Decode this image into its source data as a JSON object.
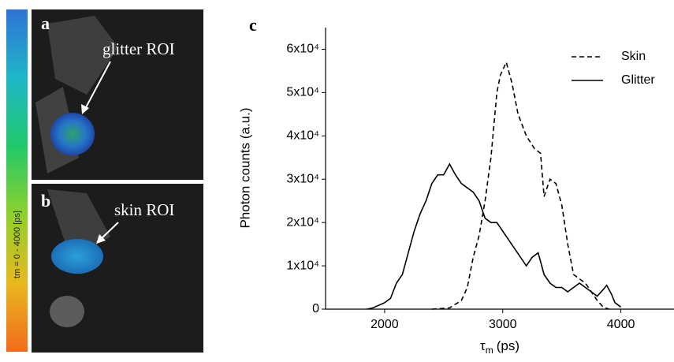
{
  "panels": {
    "a": {
      "label": "a",
      "annotation": "glitter ROI"
    },
    "b": {
      "label": "b",
      "annotation": "skin ROI"
    },
    "colorbar_label": "tm = 0 - 4000 [ps]"
  },
  "chart_data": {
    "type": "line",
    "panel_label": "c",
    "x_label": {
      "symbol": "τ",
      "subscript": "m",
      "unit": "(ps)"
    },
    "y_label": "Photon counts (a.u.)",
    "xlim": [
      1500,
      4450
    ],
    "ylim": [
      0,
      65000
    ],
    "xticks": [
      2000,
      3000,
      4000
    ],
    "yticks": [
      0,
      {
        "value": 10000,
        "label": "1x10⁴"
      },
      {
        "value": 20000,
        "label": "2x10⁴"
      },
      {
        "value": 30000,
        "label": "3x10⁴"
      },
      {
        "value": 40000,
        "label": "4x10⁴"
      },
      {
        "value": 50000,
        "label": "5x10⁴"
      },
      {
        "value": 60000,
        "label": "6x10⁴"
      }
    ],
    "legend": "top-right",
    "series": [
      {
        "name": "Skin",
        "color": "#000000",
        "dash": "dashed",
        "x": [
          2400,
          2550,
          2650,
          2700,
          2750,
          2800,
          2850,
          2900,
          2950,
          2980,
          3030,
          3080,
          3130,
          3200,
          3270,
          3320,
          3350,
          3400,
          3450,
          3500,
          3550,
          3600,
          3650,
          3700,
          3750,
          3800,
          3850,
          3900
        ],
        "values": [
          0,
          300,
          2000,
          5000,
          12000,
          17000,
          25000,
          35000,
          50000,
          54000,
          57000,
          52000,
          45000,
          40000,
          37000,
          36000,
          26000,
          30000,
          29000,
          24000,
          15000,
          8000,
          7000,
          6000,
          4000,
          2000,
          500,
          0
        ]
      },
      {
        "name": "Glitter",
        "color": "#000000",
        "dash": "solid",
        "x": [
          1850,
          1900,
          2000,
          2050,
          2100,
          2150,
          2200,
          2250,
          2300,
          2350,
          2400,
          2450,
          2500,
          2550,
          2600,
          2650,
          2700,
          2750,
          2800,
          2850,
          2900,
          2950,
          3000,
          3050,
          3100,
          3150,
          3200,
          3250,
          3300,
          3350,
          3400,
          3450,
          3500,
          3550,
          3600,
          3650,
          3700,
          3750,
          3800,
          3850,
          3880,
          3920,
          3950,
          4000
        ],
        "values": [
          0,
          300,
          1500,
          2500,
          6000,
          8000,
          13000,
          18000,
          22000,
          25000,
          29000,
          31000,
          31000,
          33500,
          31000,
          29000,
          28000,
          27000,
          25000,
          21000,
          20000,
          20000,
          18000,
          16000,
          14000,
          12000,
          10000,
          12000,
          13000,
          8000,
          6000,
          5000,
          5000,
          4000,
          5000,
          6000,
          5000,
          4000,
          3000,
          4500,
          5500,
          3500,
          1500,
          500
        ]
      }
    ]
  }
}
